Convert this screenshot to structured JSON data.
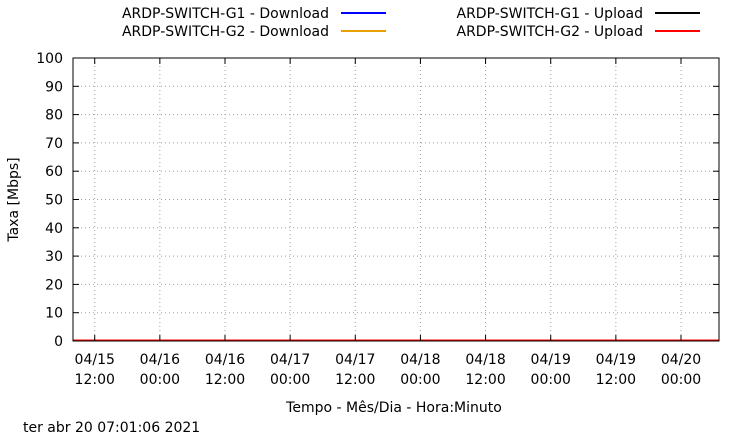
{
  "chart_data": {
    "type": "line",
    "title": "",
    "xlabel": "Tempo - Mês/Dia - Hora:Minuto",
    "ylabel": "Taxa [Mbps]",
    "ylim": [
      0,
      100
    ],
    "yticks": [
      0,
      10,
      20,
      30,
      40,
      50,
      60,
      70,
      80,
      90,
      100
    ],
    "xlim": [
      "2021-04-15 08:00",
      "2021-04-20 07:00"
    ],
    "xticks": [
      {
        "x": "2021-04-15 12:00",
        "date": "04/15",
        "time": "12:00"
      },
      {
        "x": "2021-04-16 00:00",
        "date": "04/16",
        "time": "00:00"
      },
      {
        "x": "2021-04-16 12:00",
        "date": "04/16",
        "time": "12:00"
      },
      {
        "x": "2021-04-17 00:00",
        "date": "04/17",
        "time": "00:00"
      },
      {
        "x": "2021-04-17 12:00",
        "date": "04/17",
        "time": "12:00"
      },
      {
        "x": "2021-04-18 00:00",
        "date": "04/18",
        "time": "00:00"
      },
      {
        "x": "2021-04-18 12:00",
        "date": "04/18",
        "time": "12:00"
      },
      {
        "x": "2021-04-19 00:00",
        "date": "04/19",
        "time": "00:00"
      },
      {
        "x": "2021-04-19 12:00",
        "date": "04/19",
        "time": "12:00"
      },
      {
        "x": "2021-04-20 00:00",
        "date": "04/20",
        "time": "00:00"
      }
    ],
    "grid": true,
    "legend_position": "top",
    "series": [
      {
        "name": "ARDP-SWITCH-G1 - Download",
        "color": "#0000ff",
        "points": [
          {
            "x": "2021-04-15 08:00",
            "y": 0
          },
          {
            "x": "2021-04-20 07:00",
            "y": 0
          }
        ]
      },
      {
        "name": "ARDP-SWITCH-G1 - Upload",
        "color": "#000000",
        "points": [
          {
            "x": "2021-04-15 08:00",
            "y": 0
          },
          {
            "x": "2021-04-20 07:00",
            "y": 0
          }
        ]
      },
      {
        "name": "ARDP-SWITCH-G2 - Download",
        "color": "#e6a000",
        "points": [
          {
            "x": "2021-04-15 08:00",
            "y": 0
          },
          {
            "x": "2021-04-20 07:00",
            "y": 0
          }
        ]
      },
      {
        "name": "ARDP-SWITCH-G2 - Upload",
        "color": "#ff0000",
        "points": [
          {
            "x": "2021-04-15 08:00",
            "y": 0
          },
          {
            "x": "2021-04-20 07:00",
            "y": 0
          }
        ]
      }
    ]
  },
  "footer": {
    "timestamp": "ter abr 20 07:01:06 2021"
  }
}
